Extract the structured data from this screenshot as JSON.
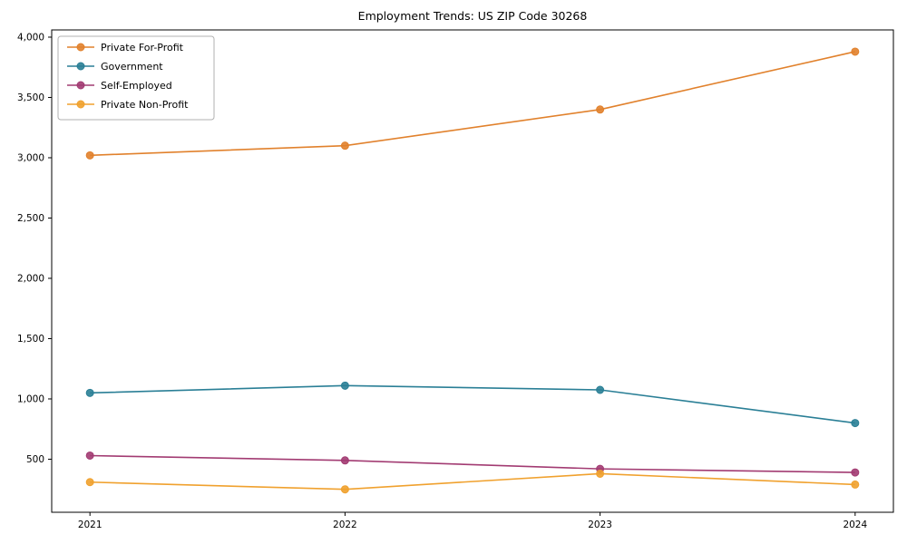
{
  "chart_data": {
    "type": "line",
    "title": "Employment Trends: US ZIP Code 30268",
    "categories": [
      2021,
      2022,
      2023,
      2024
    ],
    "series": [
      {
        "name": "Private For-Profit",
        "color": "#e1812c",
        "values": [
          3020,
          3100,
          3400,
          3880
        ]
      },
      {
        "name": "Government",
        "color": "#2a7f96",
        "values": [
          1050,
          1110,
          1075,
          800
        ]
      },
      {
        "name": "Self-Employed",
        "color": "#a23b72",
        "values": [
          530,
          490,
          420,
          390
        ]
      },
      {
        "name": "Private Non-Profit",
        "color": "#f0a12e",
        "values": [
          310,
          250,
          380,
          290
        ]
      }
    ],
    "yticks": [
      500,
      1000,
      1500,
      2000,
      2500,
      3000,
      3500,
      4000
    ],
    "ylim": [
      60,
      4060
    ],
    "xlabel": "",
    "ylabel": "",
    "grid": false,
    "legend_position": "upper-left",
    "axis_color": "#000000",
    "legend_border_color": "#b0b0b0"
  }
}
